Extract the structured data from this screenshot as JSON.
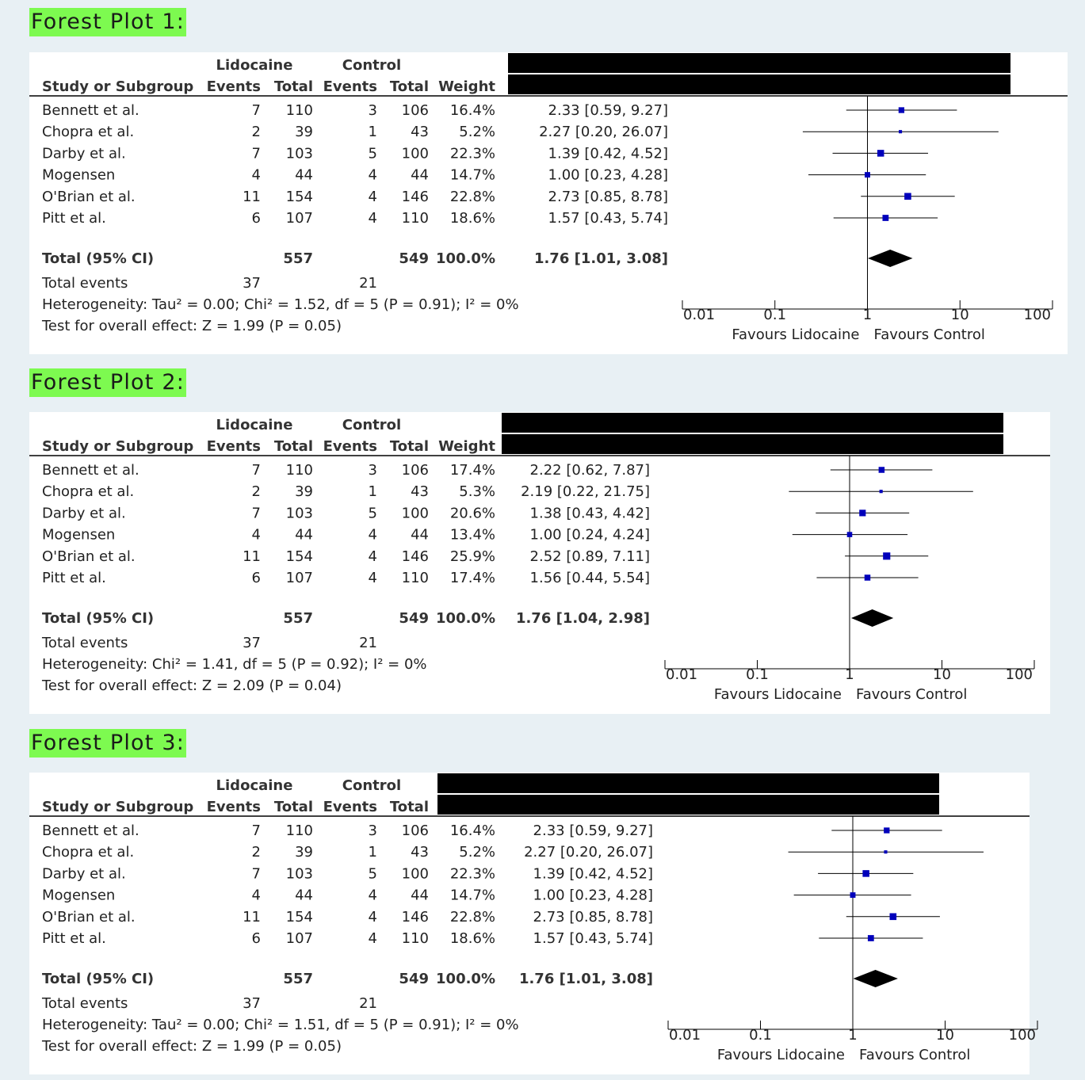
{
  "plots": [
    {
      "label": "Forest Plot 1:",
      "group_headers": {
        "experimental": "Lidocaine",
        "control": "Control"
      },
      "column_headers": {
        "study": "Study or Subgroup",
        "events_e": "Events",
        "total_e": "Total",
        "events_c": "Events",
        "total_c": "Total",
        "weight": "Weight"
      },
      "rows": [
        {
          "study": "Bennett et al.",
          "events_e": "7",
          "total_e": "110",
          "events_c": "3",
          "total_c": "106",
          "weight": "16.4%",
          "ci_text": "2.33 [0.59, 9.27]"
        },
        {
          "study": "Chopra et al.",
          "events_e": "2",
          "total_e": "39",
          "events_c": "1",
          "total_c": "43",
          "weight": "5.2%",
          "ci_text": "2.27 [0.20, 26.07]"
        },
        {
          "study": "Darby et al.",
          "events_e": "7",
          "total_e": "103",
          "events_c": "5",
          "total_c": "100",
          "weight": "22.3%",
          "ci_text": "1.39 [0.42, 4.52]"
        },
        {
          "study": "Mogensen",
          "events_e": "4",
          "total_e": "44",
          "events_c": "4",
          "total_c": "44",
          "weight": "14.7%",
          "ci_text": "1.00 [0.23, 4.28]"
        },
        {
          "study": "O'Brian et al.",
          "events_e": "11",
          "total_e": "154",
          "events_c": "4",
          "total_c": "146",
          "weight": "22.8%",
          "ci_text": "2.73 [0.85, 8.78]"
        },
        {
          "study": "Pitt et al.",
          "events_e": "6",
          "total_e": "107",
          "events_c": "4",
          "total_c": "110",
          "weight": "18.6%",
          "ci_text": "1.57 [0.43, 5.74]"
        }
      ],
      "total_row": {
        "label": "Total (95% CI)",
        "total_e": "557",
        "total_c": "549",
        "weight": "100.0%",
        "ci_text": "1.76 [1.01, 3.08]"
      },
      "total_events": {
        "label": "Total events",
        "events_e": "37",
        "events_c": "21"
      },
      "heterogeneity": "Heterogeneity: Tau² = 0.00; Chi² = 1.52, df = 5 (P = 0.91); I² = 0%",
      "overall_effect": "Test for overall effect: Z = 1.99 (P = 0.05)",
      "axis": {
        "ticks": [
          "0.01",
          "0.1",
          "1",
          "10",
          "100"
        ],
        "favours_left": "Favours Lidocaine",
        "favours_right": "Favours Control"
      },
      "chart_data": {
        "type": "scatter",
        "scale": "log",
        "xlim": [
          0.01,
          100
        ],
        "points": [
          {
            "est": 2.33,
            "lo": 0.59,
            "hi": 9.27,
            "weight": 16.4
          },
          {
            "est": 2.27,
            "lo": 0.2,
            "hi": 26.07,
            "weight": 5.2
          },
          {
            "est": 1.39,
            "lo": 0.42,
            "hi": 4.52,
            "weight": 22.3
          },
          {
            "est": 1.0,
            "lo": 0.23,
            "hi": 4.28,
            "weight": 14.7
          },
          {
            "est": 2.73,
            "lo": 0.85,
            "hi": 8.78,
            "weight": 22.8
          },
          {
            "est": 1.57,
            "lo": 0.43,
            "hi": 5.74,
            "weight": 18.6
          }
        ],
        "pooled": {
          "est": 1.76,
          "lo": 1.01,
          "hi": 3.08
        }
      },
      "colors": {
        "marker": "#0000bb",
        "header_bar": "#000000"
      }
    },
    {
      "label": "Forest Plot 2:",
      "group_headers": {
        "experimental": "Lidocaine",
        "control": "Control"
      },
      "column_headers": {
        "study": "Study or Subgroup",
        "events_e": "Events",
        "total_e": "Total",
        "events_c": "Events",
        "total_c": "Total",
        "weight": "Weight"
      },
      "rows": [
        {
          "study": "Bennett et al.",
          "events_e": "7",
          "total_e": "110",
          "events_c": "3",
          "total_c": "106",
          "weight": "17.4%",
          "ci_text": "2.22 [0.62, 7.87]"
        },
        {
          "study": "Chopra et al.",
          "events_e": "2",
          "total_e": "39",
          "events_c": "1",
          "total_c": "43",
          "weight": "5.3%",
          "ci_text": "2.19 [0.22, 21.75]"
        },
        {
          "study": "Darby et al.",
          "events_e": "7",
          "total_e": "103",
          "events_c": "5",
          "total_c": "100",
          "weight": "20.6%",
          "ci_text": "1.38 [0.43, 4.42]"
        },
        {
          "study": "Mogensen",
          "events_e": "4",
          "total_e": "44",
          "events_c": "4",
          "total_c": "44",
          "weight": "13.4%",
          "ci_text": "1.00 [0.24, 4.24]"
        },
        {
          "study": "O'Brian et al.",
          "events_e": "11",
          "total_e": "154",
          "events_c": "4",
          "total_c": "146",
          "weight": "25.9%",
          "ci_text": "2.52 [0.89, 7.11]"
        },
        {
          "study": "Pitt et al.",
          "events_e": "6",
          "total_e": "107",
          "events_c": "4",
          "total_c": "110",
          "weight": "17.4%",
          "ci_text": "1.56 [0.44, 5.54]"
        }
      ],
      "total_row": {
        "label": "Total (95% CI)",
        "total_e": "557",
        "total_c": "549",
        "weight": "100.0%",
        "ci_text": "1.76 [1.04, 2.98]"
      },
      "total_events": {
        "label": "Total events",
        "events_e": "37",
        "events_c": "21"
      },
      "heterogeneity": "Heterogeneity: Chi² = 1.41, df = 5 (P = 0.92); I² = 0%",
      "overall_effect": "Test for overall effect: Z = 2.09 (P = 0.04)",
      "axis": {
        "ticks": [
          "0.01",
          "0.1",
          "1",
          "10",
          "100"
        ],
        "favours_left": "Favours Lidocaine",
        "favours_right": "Favours Control"
      },
      "chart_data": {
        "type": "scatter",
        "scale": "log",
        "xlim": [
          0.01,
          100
        ],
        "points": [
          {
            "est": 2.22,
            "lo": 0.62,
            "hi": 7.87,
            "weight": 17.4
          },
          {
            "est": 2.19,
            "lo": 0.22,
            "hi": 21.75,
            "weight": 5.3
          },
          {
            "est": 1.38,
            "lo": 0.43,
            "hi": 4.42,
            "weight": 20.6
          },
          {
            "est": 1.0,
            "lo": 0.24,
            "hi": 4.24,
            "weight": 13.4
          },
          {
            "est": 2.52,
            "lo": 0.89,
            "hi": 7.11,
            "weight": 25.9
          },
          {
            "est": 1.56,
            "lo": 0.44,
            "hi": 5.54,
            "weight": 17.4
          }
        ],
        "pooled": {
          "est": 1.76,
          "lo": 1.04,
          "hi": 2.98
        }
      },
      "colors": {
        "marker": "#0000bb",
        "header_bar": "#000000"
      }
    },
    {
      "label": "Forest Plot 3:",
      "group_headers": {
        "experimental": "Lidocaine",
        "control": "Control"
      },
      "column_headers": {
        "study": "Study or Subgroup",
        "events_e": "Events",
        "total_e": "Total",
        "events_c": "Events",
        "total_c": "Total",
        "weight": ""
      },
      "rows": [
        {
          "study": "Bennett et al.",
          "events_e": "7",
          "total_e": "110",
          "events_c": "3",
          "total_c": "106",
          "weight": "16.4%",
          "ci_text": "2.33 [0.59, 9.27]"
        },
        {
          "study": "Chopra et al.",
          "events_e": "2",
          "total_e": "39",
          "events_c": "1",
          "total_c": "43",
          "weight": "5.2%",
          "ci_text": "2.27 [0.20, 26.07]"
        },
        {
          "study": "Darby et al.",
          "events_e": "7",
          "total_e": "103",
          "events_c": "5",
          "total_c": "100",
          "weight": "22.3%",
          "ci_text": "1.39 [0.42, 4.52]"
        },
        {
          "study": "Mogensen",
          "events_e": "4",
          "total_e": "44",
          "events_c": "4",
          "total_c": "44",
          "weight": "14.7%",
          "ci_text": "1.00 [0.23, 4.28]"
        },
        {
          "study": "O'Brian et al.",
          "events_e": "11",
          "total_e": "154",
          "events_c": "4",
          "total_c": "146",
          "weight": "22.8%",
          "ci_text": "2.73 [0.85, 8.78]"
        },
        {
          "study": "Pitt et al.",
          "events_e": "6",
          "total_e": "107",
          "events_c": "4",
          "total_c": "110",
          "weight": "18.6%",
          "ci_text": "1.57 [0.43, 5.74]"
        }
      ],
      "total_row": {
        "label": "Total (95% CI)",
        "total_e": "557",
        "total_c": "549",
        "weight": "100.0%",
        "ci_text": "1.76 [1.01, 3.08]"
      },
      "total_events": {
        "label": "Total events",
        "events_e": "37",
        "events_c": "21"
      },
      "heterogeneity": "Heterogeneity: Tau² = 0.00; Chi² = 1.51, df = 5 (P = 0.91); I² = 0%",
      "overall_effect": "Test for overall effect: Z = 1.99 (P = 0.05)",
      "axis": {
        "ticks": [
          "0.01",
          "0.1",
          "1",
          "10",
          "100"
        ],
        "favours_left": "Favours Lidocaine",
        "favours_right": "Favours Control"
      },
      "chart_data": {
        "type": "scatter",
        "scale": "log",
        "xlim": [
          0.01,
          100
        ],
        "points": [
          {
            "est": 2.33,
            "lo": 0.59,
            "hi": 9.27,
            "weight": 16.4
          },
          {
            "est": 2.27,
            "lo": 0.2,
            "hi": 26.07,
            "weight": 5.2
          },
          {
            "est": 1.39,
            "lo": 0.42,
            "hi": 4.52,
            "weight": 22.3
          },
          {
            "est": 1.0,
            "lo": 0.23,
            "hi": 4.28,
            "weight": 14.7
          },
          {
            "est": 2.73,
            "lo": 0.85,
            "hi": 8.78,
            "weight": 22.8
          },
          {
            "est": 1.57,
            "lo": 0.43,
            "hi": 5.74,
            "weight": 18.6
          }
        ],
        "pooled": {
          "est": 1.76,
          "lo": 1.01,
          "hi": 3.08
        }
      },
      "colors": {
        "marker": "#0000bb",
        "header_bar": "#000000"
      }
    }
  ]
}
